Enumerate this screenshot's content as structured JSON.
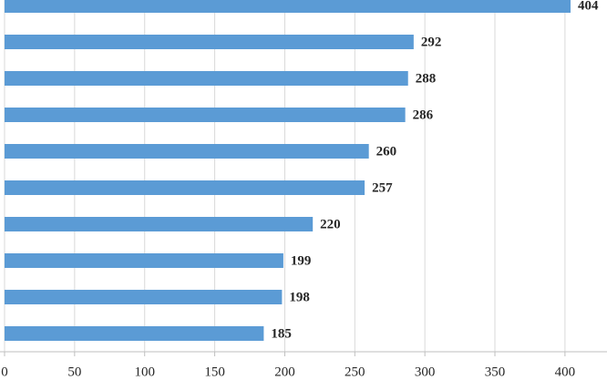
{
  "chart_data": {
    "type": "barh",
    "categories": [
      null,
      null,
      null,
      null,
      null,
      null,
      null,
      null,
      null,
      null
    ],
    "values": [
      404,
      292,
      288,
      286,
      260,
      257,
      220,
      199,
      198,
      185
    ],
    "color": "#5b9bd5",
    "xlim": [
      0,
      430
    ],
    "xticks": [
      0,
      50,
      100,
      150,
      200,
      250,
      300,
      350,
      400
    ],
    "grid": true
  }
}
